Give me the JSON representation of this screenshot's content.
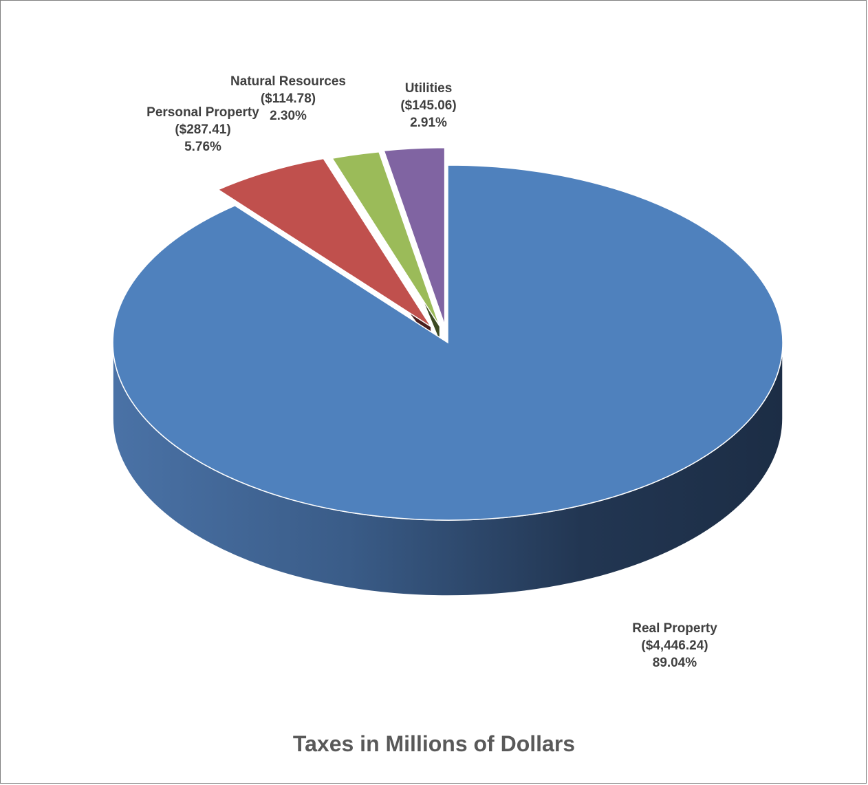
{
  "chart_data": {
    "type": "pie",
    "title": "Taxes in Millions of Dollars",
    "slices": [
      {
        "name": "Real Property",
        "value_label": "($4,446.24)",
        "percent_label": "89.04%",
        "value": 4446.24,
        "percent": 89.04,
        "color": "#4F81BD",
        "side_color": "#1F3350"
      },
      {
        "name": "Personal Property",
        "value_label": "($287.41)",
        "percent_label": "5.76%",
        "value": 287.41,
        "percent": 5.76,
        "color": "#C0504D",
        "side_color": "#4A1E1E"
      },
      {
        "name": "Natural Resources",
        "value_label": "($114.78)",
        "percent_label": "2.30%",
        "value": 114.78,
        "percent": 2.3,
        "color": "#9BBB59",
        "side_color": "#3C4A22"
      },
      {
        "name": "Utilities",
        "value_label": "($145.06)",
        "percent_label": "2.91%",
        "value": 145.06,
        "percent": 2.91,
        "color": "#8064A2",
        "side_color": "#2F2440"
      }
    ]
  }
}
